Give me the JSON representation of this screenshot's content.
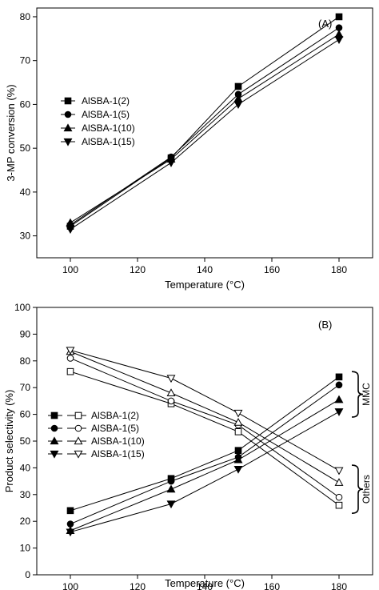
{
  "chart_data": [
    {
      "type": "line",
      "panel_label": "(A)",
      "xlabel": "Temperature (°C)",
      "ylabel": "3-MP conversion (%)",
      "xlim": [
        90,
        190
      ],
      "ylim": [
        25,
        82
      ],
      "xticks": [
        100,
        120,
        140,
        160,
        180
      ],
      "yticks": [
        30,
        40,
        50,
        60,
        70,
        80
      ],
      "legend_position": "left-middle",
      "x": [
        100,
        130,
        150,
        180
      ],
      "series": [
        {
          "name": "AlSBA-1(2)",
          "marker": "square",
          "fill": "filled",
          "values": [
            32.2,
            47.8,
            64.1,
            80.0
          ]
        },
        {
          "name": "AlSBA-1(5)",
          "marker": "circle",
          "fill": "filled",
          "values": [
            32.5,
            48.0,
            62.3,
            77.5
          ]
        },
        {
          "name": "AlSBA-1(10)",
          "marker": "triangle-up",
          "fill": "filled",
          "values": [
            33.0,
            47.5,
            61.3,
            76.0
          ]
        },
        {
          "name": "AlSBA-1(15)",
          "marker": "triangle-down",
          "fill": "filled",
          "values": [
            31.5,
            46.7,
            60.0,
            74.8
          ]
        }
      ]
    },
    {
      "type": "line",
      "panel_label": "(B)",
      "xlabel": "Temperature (°C)",
      "ylabel": "Product selectivity (%)",
      "xlim": [
        90,
        190
      ],
      "ylim": [
        0,
        100
      ],
      "xticks": [
        100,
        120,
        140,
        160,
        180
      ],
      "yticks": [
        0,
        10,
        20,
        30,
        40,
        50,
        60,
        70,
        80,
        90,
        100
      ],
      "legend_position": "left-middle",
      "group_labels": [
        "MMC",
        "Others"
      ],
      "x": [
        100,
        130,
        150,
        180
      ],
      "series": [
        {
          "name": "AlSBA-1(2)",
          "group": "MMC",
          "marker": "square",
          "fill": "filled",
          "values": [
            24.0,
            36.0,
            46.5,
            74.0
          ]
        },
        {
          "name": "AlSBA-1(2)",
          "group": "Others",
          "marker": "square",
          "fill": "open",
          "values": [
            76.0,
            64.0,
            53.5,
            26.0
          ]
        },
        {
          "name": "AlSBA-1(5)",
          "group": "MMC",
          "marker": "circle",
          "fill": "filled",
          "values": [
            19.0,
            35.0,
            44.0,
            71.0
          ]
        },
        {
          "name": "AlSBA-1(5)",
          "group": "Others",
          "marker": "circle",
          "fill": "open",
          "values": [
            81.0,
            65.0,
            56.0,
            29.0
          ]
        },
        {
          "name": "AlSBA-1(10)",
          "group": "MMC",
          "marker": "triangle-up",
          "fill": "filled",
          "values": [
            16.5,
            32.0,
            43.0,
            65.5
          ]
        },
        {
          "name": "AlSBA-1(10)",
          "group": "Others",
          "marker": "triangle-up",
          "fill": "open",
          "values": [
            83.5,
            68.0,
            57.0,
            34.5
          ]
        },
        {
          "name": "AlSBA-1(15)",
          "group": "MMC",
          "marker": "triangle-down",
          "fill": "filled",
          "values": [
            16.0,
            26.5,
            39.5,
            61.0
          ]
        },
        {
          "name": "AlSBA-1(15)",
          "group": "Others",
          "marker": "triangle-down",
          "fill": "open",
          "values": [
            84.0,
            73.5,
            60.5,
            39.0
          ]
        }
      ]
    }
  ],
  "colors": {
    "line": "#000000",
    "background": "#ffffff"
  }
}
